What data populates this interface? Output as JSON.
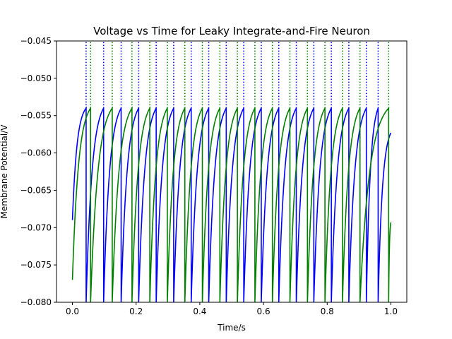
{
  "chart_data": {
    "type": "line",
    "title": "Voltage vs Time for Leaky Integrate-and-Fire Neuron",
    "xlabel": "Time/s",
    "ylabel": "Membrane Potential/V",
    "xlim": [
      -0.05,
      1.05
    ],
    "ylim": [
      -0.08,
      -0.045
    ],
    "x_ticks": [
      {
        "value": 0.0,
        "label": "0.0"
      },
      {
        "value": 0.2,
        "label": "0.2"
      },
      {
        "value": 0.4,
        "label": "0.4"
      },
      {
        "value": 0.6,
        "label": "0.6"
      },
      {
        "value": 0.8,
        "label": "0.8"
      },
      {
        "value": 1.0,
        "label": "1.0"
      }
    ],
    "y_ticks": [
      {
        "value": -0.08,
        "label": "−0.080"
      },
      {
        "value": -0.075,
        "label": "−0.075"
      },
      {
        "value": -0.07,
        "label": "−0.070"
      },
      {
        "value": -0.065,
        "label": "−0.065"
      },
      {
        "value": -0.06,
        "label": "−0.060"
      },
      {
        "value": -0.055,
        "label": "−0.055"
      },
      {
        "value": -0.05,
        "label": "−0.050"
      },
      {
        "value": -0.045,
        "label": "−0.045"
      }
    ],
    "grid": false,
    "legend": "none",
    "threshold": -0.054,
    "reset": -0.08,
    "series": [
      {
        "color": "#0000ff",
        "style": "solid",
        "start": [
          0.0,
          -0.069
        ],
        "end": [
          1.0,
          -0.0573
        ],
        "spike_times": [
          0.043,
          0.098,
          0.153,
          0.208,
          0.263,
          0.318,
          0.373,
          0.428,
          0.483,
          0.538,
          0.593,
          0.648,
          0.703,
          0.758,
          0.813,
          0.868,
          0.923,
          0.96
        ]
      },
      {
        "color": "#008000",
        "style": "solid",
        "start": [
          0.0,
          -0.077
        ],
        "end": [
          1.0,
          -0.0693
        ],
        "spike_times": [
          0.057,
          0.125,
          0.187,
          0.243,
          0.298,
          0.353,
          0.408,
          0.463,
          0.518,
          0.573,
          0.628,
          0.683,
          0.738,
          0.793,
          0.848,
          0.903,
          0.993
        ]
      }
    ]
  }
}
